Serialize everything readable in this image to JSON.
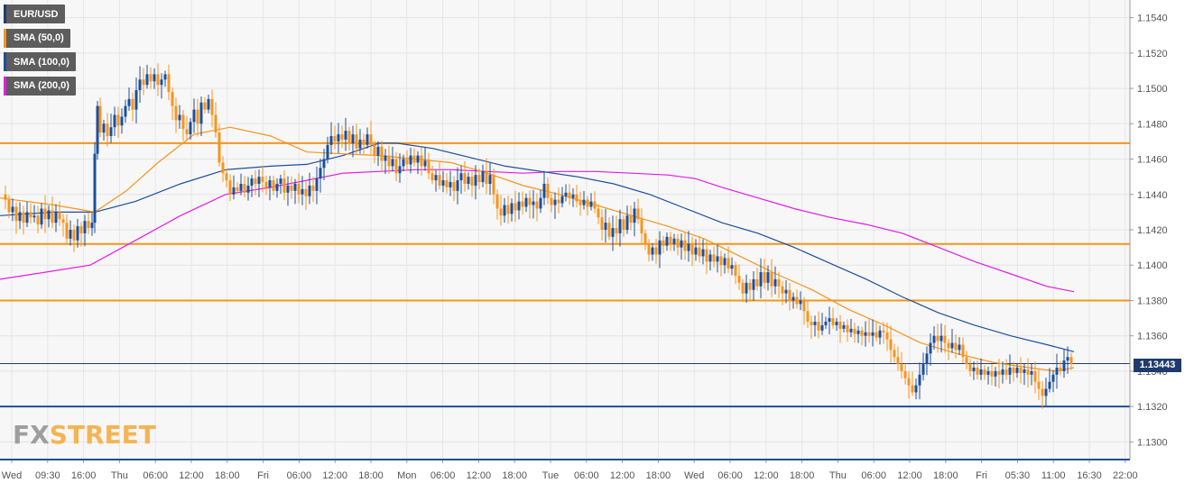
{
  "instrument": "EUR/USD",
  "legend": [
    {
      "label": "EUR/USD",
      "color": "#1f3b6e"
    },
    {
      "label": "SMA (50,0)",
      "color": "#f7941d"
    },
    {
      "label": "SMA (100,0)",
      "color": "#1c4f9c"
    },
    {
      "label": "SMA (200,0)",
      "color": "#e61be6"
    }
  ],
  "current_price_label": "1.13443",
  "logo": {
    "fx": "FX",
    "street": "STREET"
  },
  "colors": {
    "up_candle": "#1c4f9c",
    "down_candle": "#f7941d",
    "resistance": "#f7941d",
    "support": "#1c4f9c",
    "sma50": "#f7941d",
    "sma100": "#1c4f9c",
    "sma200": "#e61be6",
    "price_line": "#1f3b6e"
  },
  "chart_data": {
    "type": "line",
    "ylim": [
      1.129,
      1.155
    ],
    "y_ticks": [
      "1.1540",
      "1.1520",
      "1.1500",
      "1.1480",
      "1.1460",
      "1.1440",
      "1.1420",
      "1.1400",
      "1.1380",
      "1.1360",
      "1.1340",
      "1.1320",
      "1.1300"
    ],
    "x_ticks": [
      "Wed",
      "09:30",
      "16:00",
      "Thu",
      "06:00",
      "12:00",
      "18:00",
      "Fri",
      "06:00",
      "12:00",
      "18:00",
      "Mon",
      "06:00",
      "12:00",
      "18:00",
      "Tue",
      "06:00",
      "12:00",
      "18:00",
      "Wed",
      "06:00",
      "12:00",
      "18:00",
      "Thu",
      "06:00",
      "12:00",
      "18:00",
      "Fri",
      "05:30",
      "11:00",
      "16:30",
      "22:00"
    ],
    "horizontal_levels": [
      {
        "value": 1.1469,
        "kind": "resistance"
      },
      {
        "value": 1.1412,
        "kind": "resistance"
      },
      {
        "value": 1.138,
        "kind": "resistance"
      },
      {
        "value": 1.132,
        "kind": "support"
      }
    ],
    "current_price": 1.13443,
    "price_path": [
      [
        0,
        1.144
      ],
      [
        6,
        1.1437
      ],
      [
        10,
        1.143
      ],
      [
        14,
        1.1433
      ],
      [
        18,
        1.1425
      ],
      [
        22,
        1.143
      ],
      [
        26,
        1.1424
      ],
      [
        30,
        1.143
      ],
      [
        34,
        1.1427
      ],
      [
        38,
        1.1428
      ],
      [
        42,
        1.1423
      ],
      [
        46,
        1.1432
      ],
      [
        50,
        1.1426
      ],
      [
        54,
        1.1431
      ],
      [
        58,
        1.1424
      ],
      [
        62,
        1.143
      ],
      [
        66,
        1.1426
      ],
      [
        70,
        1.1424
      ],
      [
        74,
        1.1415
      ],
      [
        78,
        1.142
      ],
      [
        82,
        1.1414
      ],
      [
        86,
        1.1422
      ],
      [
        90,
        1.1418
      ],
      [
        94,
        1.1425
      ],
      [
        98,
        1.1421
      ],
      [
        102,
        1.1424
      ],
      [
        105,
        1.1463
      ],
      [
        108,
        1.149
      ],
      [
        111,
        1.1475
      ],
      [
        115,
        1.148
      ],
      [
        119,
        1.1473
      ],
      [
        123,
        1.1478
      ],
      [
        127,
        1.1485
      ],
      [
        131,
        1.1479
      ],
      [
        135,
        1.1484
      ],
      [
        139,
        1.149
      ],
      [
        143,
        1.1494
      ],
      [
        147,
        1.1488
      ],
      [
        151,
        1.1499
      ],
      [
        155,
        1.1505
      ],
      [
        159,
        1.1502
      ],
      [
        163,
        1.1508
      ],
      [
        167,
        1.1504
      ],
      [
        171,
        1.1508
      ],
      [
        175,
        1.1502
      ],
      [
        179,
        1.1505
      ],
      [
        183,
        1.1508
      ],
      [
        187,
        1.1498
      ],
      [
        191,
        1.149
      ],
      [
        195,
        1.1482
      ],
      [
        199,
        1.1485
      ],
      [
        203,
        1.1477
      ],
      [
        207,
        1.1474
      ],
      [
        211,
        1.1481
      ],
      [
        215,
        1.1488
      ],
      [
        219,
        1.148
      ],
      [
        223,
        1.1492
      ],
      [
        227,
        1.1488
      ],
      [
        231,
        1.1494
      ],
      [
        235,
        1.1485
      ],
      [
        239,
        1.1475
      ],
      [
        243,
        1.1458
      ],
      [
        247,
        1.1452
      ],
      [
        251,
        1.1448
      ],
      [
        255,
        1.144
      ],
      [
        259,
        1.1444
      ],
      [
        263,
        1.1442
      ],
      [
        267,
        1.1446
      ],
      [
        271,
        1.1441
      ],
      [
        275,
        1.1445
      ],
      [
        279,
        1.1449
      ],
      [
        283,
        1.1446
      ],
      [
        287,
        1.145
      ],
      [
        291,
        1.1447
      ],
      [
        295,
        1.1444
      ],
      [
        299,
        1.1448
      ],
      [
        303,
        1.1442
      ],
      [
        307,
        1.1446
      ],
      [
        311,
        1.1449
      ],
      [
        315,
        1.1441
      ],
      [
        319,
        1.1445
      ],
      [
        323,
        1.1442
      ],
      [
        327,
        1.1446
      ],
      [
        331,
        1.144
      ],
      [
        335,
        1.1443
      ],
      [
        339,
        1.1439
      ],
      [
        343,
        1.1445
      ],
      [
        347,
        1.1442
      ],
      [
        351,
        1.1449
      ],
      [
        355,
        1.1455
      ],
      [
        359,
        1.146
      ],
      [
        363,
        1.1468
      ],
      [
        367,
        1.1473
      ],
      [
        371,
        1.147
      ],
      [
        375,
        1.1474
      ],
      [
        379,
        1.1471
      ],
      [
        383,
        1.1476
      ],
      [
        387,
        1.1469
      ],
      [
        391,
        1.1474
      ],
      [
        395,
        1.1466
      ],
      [
        399,
        1.1471
      ],
      [
        403,
        1.1468
      ],
      [
        407,
        1.1474
      ],
      [
        411,
        1.1468
      ],
      [
        415,
        1.1462
      ],
      [
        419,
        1.1467
      ],
      [
        423,
        1.1459
      ],
      [
        427,
        1.1462
      ],
      [
        431,
        1.1456
      ],
      [
        435,
        1.146
      ],
      [
        439,
        1.1452
      ],
      [
        443,
        1.1456
      ],
      [
        447,
        1.146
      ],
      [
        451,
        1.1457
      ],
      [
        455,
        1.1462
      ],
      [
        459,
        1.1458
      ],
      [
        463,
        1.1462
      ],
      [
        467,
        1.1456
      ],
      [
        471,
        1.1459
      ],
      [
        475,
        1.1452
      ],
      [
        479,
        1.1448
      ],
      [
        483,
        1.1451
      ],
      [
        487,
        1.1445
      ],
      [
        491,
        1.1448
      ],
      [
        495,
        1.1444
      ],
      [
        499,
        1.1447
      ],
      [
        503,
        1.1442
      ],
      [
        507,
        1.1448
      ],
      [
        511,
        1.1452
      ],
      [
        515,
        1.1446
      ],
      [
        519,
        1.145
      ],
      [
        523,
        1.1445
      ],
      [
        527,
        1.1451
      ],
      [
        531,
        1.1447
      ],
      [
        535,
        1.1453
      ],
      [
        539,
        1.1446
      ],
      [
        543,
        1.1451
      ],
      [
        547,
        1.144
      ],
      [
        551,
        1.1432
      ],
      [
        555,
        1.1428
      ],
      [
        559,
        1.1434
      ],
      [
        563,
        1.1429
      ],
      [
        567,
        1.1435
      ],
      [
        571,
        1.1431
      ],
      [
        575,
        1.1436
      ],
      [
        579,
        1.1433
      ],
      [
        583,
        1.1438
      ],
      [
        587,
        1.1434
      ],
      [
        591,
        1.1436
      ],
      [
        595,
        1.1432
      ],
      [
        599,
        1.1438
      ],
      [
        603,
        1.1446
      ],
      [
        607,
        1.1438
      ],
      [
        611,
        1.1434
      ],
      [
        615,
        1.1437
      ],
      [
        619,
        1.1435
      ],
      [
        623,
        1.1439
      ],
      [
        627,
        1.1441
      ],
      [
        631,
        1.1438
      ],
      [
        635,
        1.144
      ],
      [
        639,
        1.1436
      ],
      [
        643,
        1.1434
      ],
      [
        647,
        1.1437
      ],
      [
        651,
        1.1433
      ],
      [
        655,
        1.1436
      ],
      [
        659,
        1.1432
      ],
      [
        663,
        1.1427
      ],
      [
        667,
        1.142
      ],
      [
        671,
        1.1424
      ],
      [
        675,
        1.1416
      ],
      [
        679,
        1.1421
      ],
      [
        683,
        1.1418
      ],
      [
        687,
        1.1426
      ],
      [
        691,
        1.142
      ],
      [
        695,
        1.1428
      ],
      [
        699,
        1.1424
      ],
      [
        703,
        1.1432
      ],
      [
        707,
        1.1426
      ],
      [
        711,
        1.1418
      ],
      [
        715,
        1.1412
      ],
      [
        719,
        1.1406
      ],
      [
        723,
        1.141
      ],
      [
        727,
        1.1406
      ],
      [
        731,
        1.1414
      ],
      [
        735,
        1.1411
      ],
      [
        739,
        1.1416
      ],
      [
        743,
        1.1412
      ],
      [
        747,
        1.1415
      ],
      [
        751,
        1.141
      ],
      [
        755,
        1.1414
      ],
      [
        759,
        1.1408
      ],
      [
        763,
        1.1412
      ],
      [
        767,
        1.1406
      ],
      [
        771,
        1.141
      ],
      [
        775,
        1.1405
      ],
      [
        779,
        1.1409
      ],
      [
        783,
        1.1402
      ],
      [
        787,
        1.1406
      ],
      [
        791,
        1.1402
      ],
      [
        795,
        1.1405
      ],
      [
        799,
        1.14
      ],
      [
        803,
        1.1404
      ],
      [
        807,
        1.1398
      ],
      [
        811,
        1.14
      ],
      [
        815,
        1.1394
      ],
      [
        819,
        1.139
      ],
      [
        823,
        1.1384
      ],
      [
        827,
        1.139
      ],
      [
        831,
        1.1386
      ],
      [
        835,
        1.1392
      ],
      [
        839,
        1.1388
      ],
      [
        843,
        1.1396
      ],
      [
        847,
        1.139
      ],
      [
        851,
        1.1396
      ],
      [
        855,
        1.1388
      ],
      [
        859,
        1.1392
      ],
      [
        863,
        1.1388
      ],
      [
        867,
        1.1384
      ],
      [
        871,
        1.1386
      ],
      [
        875,
        1.138
      ],
      [
        879,
        1.1382
      ],
      [
        883,
        1.1378
      ],
      [
        887,
        1.138
      ],
      [
        891,
        1.1374
      ],
      [
        895,
        1.1368
      ],
      [
        899,
        1.1366
      ],
      [
        903,
        1.1368
      ],
      [
        907,
        1.1363
      ],
      [
        911,
        1.1366
      ],
      [
        915,
        1.1368
      ],
      [
        919,
        1.137
      ],
      [
        923,
        1.1366
      ],
      [
        927,
        1.1368
      ],
      [
        931,
        1.1364
      ],
      [
        935,
        1.1366
      ],
      [
        939,
        1.1362
      ],
      [
        943,
        1.1364
      ],
      [
        947,
        1.1361
      ],
      [
        951,
        1.1363
      ],
      [
        955,
        1.136
      ],
      [
        959,
        1.1362
      ],
      [
        963,
        1.136
      ],
      [
        967,
        1.1362
      ],
      [
        971,
        1.1359
      ],
      [
        975,
        1.1363
      ],
      [
        979,
        1.1362
      ],
      [
        983,
        1.1358
      ],
      [
        987,
        1.1352
      ],
      [
        991,
        1.1348
      ],
      [
        995,
        1.1344
      ],
      [
        999,
        1.134
      ],
      [
        1003,
        1.1336
      ],
      [
        1007,
        1.1332
      ],
      [
        1011,
        1.1328
      ],
      [
        1015,
        1.1332
      ],
      [
        1019,
        1.1338
      ],
      [
        1023,
        1.1344
      ],
      [
        1027,
        1.135
      ],
      [
        1031,
        1.1356
      ],
      [
        1035,
        1.136
      ],
      [
        1039,
        1.1357
      ],
      [
        1043,
        1.136
      ],
      [
        1047,
        1.1356
      ],
      [
        1051,
        1.1353
      ],
      [
        1055,
        1.1356
      ],
      [
        1059,
        1.1352
      ],
      [
        1063,
        1.1355
      ],
      [
        1067,
        1.1348
      ],
      [
        1071,
        1.1344
      ],
      [
        1075,
        1.134
      ],
      [
        1079,
        1.1342
      ],
      [
        1083,
        1.1338
      ],
      [
        1087,
        1.1341
      ],
      [
        1091,
        1.1338
      ],
      [
        1095,
        1.134
      ],
      [
        1099,
        1.1337
      ],
      [
        1103,
        1.134
      ],
      [
        1107,
        1.1338
      ],
      [
        1111,
        1.1341
      ],
      [
        1115,
        1.1338
      ],
      [
        1119,
        1.1342
      ],
      [
        1123,
        1.1339
      ],
      [
        1127,
        1.1342
      ],
      [
        1131,
        1.1339
      ],
      [
        1135,
        1.1341
      ],
      [
        1139,
        1.1338
      ],
      [
        1143,
        1.134
      ],
      [
        1147,
        1.1334
      ],
      [
        1151,
        1.133
      ],
      [
        1155,
        1.1326
      ],
      [
        1159,
        1.133
      ],
      [
        1163,
        1.1334
      ],
      [
        1167,
        1.1338
      ],
      [
        1171,
        1.1342
      ],
      [
        1175,
        1.134
      ],
      [
        1179,
        1.1346
      ],
      [
        1183,
        1.1348
      ],
      [
        1187,
        1.1344
      ]
    ],
    "sma50": [
      [
        0,
        1.1438
      ],
      [
        60,
        1.1434
      ],
      [
        105,
        1.143
      ],
      [
        140,
        1.1442
      ],
      [
        175,
        1.1458
      ],
      [
        215,
        1.1474
      ],
      [
        255,
        1.1478
      ],
      [
        300,
        1.1473
      ],
      [
        340,
        1.1464
      ],
      [
        380,
        1.1463
      ],
      [
        420,
        1.1462
      ],
      [
        460,
        1.146
      ],
      [
        500,
        1.1458
      ],
      [
        540,
        1.1452
      ],
      [
        580,
        1.1445
      ],
      [
        620,
        1.144
      ],
      [
        660,
        1.1434
      ],
      [
        700,
        1.1428
      ],
      [
        740,
        1.1422
      ],
      [
        780,
        1.1415
      ],
      [
        820,
        1.1405
      ],
      [
        860,
        1.1395
      ],
      [
        900,
        1.1386
      ],
      [
        940,
        1.1375
      ],
      [
        980,
        1.1366
      ],
      [
        1020,
        1.1356
      ],
      [
        1060,
        1.135
      ],
      [
        1100,
        1.1345
      ],
      [
        1140,
        1.1342
      ],
      [
        1170,
        1.134
      ],
      [
        1190,
        1.1342
      ]
    ],
    "sma100": [
      [
        0,
        1.1428
      ],
      [
        60,
        1.143
      ],
      [
        105,
        1.143
      ],
      [
        150,
        1.1436
      ],
      [
        200,
        1.1446
      ],
      [
        250,
        1.1454
      ],
      [
        300,
        1.1456
      ],
      [
        340,
        1.1457
      ],
      [
        380,
        1.1462
      ],
      [
        420,
        1.1469
      ],
      [
        440,
        1.1469
      ],
      [
        480,
        1.1466
      ],
      [
        520,
        1.1461
      ],
      [
        560,
        1.1456
      ],
      [
        600,
        1.1453
      ],
      [
        640,
        1.145
      ],
      [
        680,
        1.1446
      ],
      [
        720,
        1.144
      ],
      [
        760,
        1.1432
      ],
      [
        800,
        1.1424
      ],
      [
        840,
        1.1418
      ],
      [
        880,
        1.141
      ],
      [
        920,
        1.1401
      ],
      [
        960,
        1.1392
      ],
      [
        1000,
        1.1382
      ],
      [
        1040,
        1.1373
      ],
      [
        1080,
        1.1366
      ],
      [
        1120,
        1.136
      ],
      [
        1160,
        1.1355
      ],
      [
        1190,
        1.1351
      ]
    ],
    "sma200": [
      [
        0,
        1.1392
      ],
      [
        50,
        1.1396
      ],
      [
        100,
        1.14
      ],
      [
        150,
        1.1414
      ],
      [
        200,
        1.1428
      ],
      [
        250,
        1.144
      ],
      [
        300,
        1.1444
      ],
      [
        340,
        1.1448
      ],
      [
        380,
        1.1452
      ],
      [
        420,
        1.1453
      ],
      [
        460,
        1.1454
      ],
      [
        500,
        1.1454
      ],
      [
        540,
        1.1453
      ],
      [
        580,
        1.1452
      ],
      [
        620,
        1.1453
      ],
      [
        660,
        1.1453
      ],
      [
        700,
        1.1452
      ],
      [
        740,
        1.1451
      ],
      [
        770,
        1.1449
      ],
      [
        800,
        1.1444
      ],
      [
        840,
        1.1438
      ],
      [
        880,
        1.1432
      ],
      [
        920,
        1.1427
      ],
      [
        960,
        1.1423
      ],
      [
        1000,
        1.1418
      ],
      [
        1040,
        1.141
      ],
      [
        1080,
        1.1402
      ],
      [
        1120,
        1.1395
      ],
      [
        1160,
        1.1388
      ],
      [
        1190,
        1.1385
      ]
    ]
  }
}
